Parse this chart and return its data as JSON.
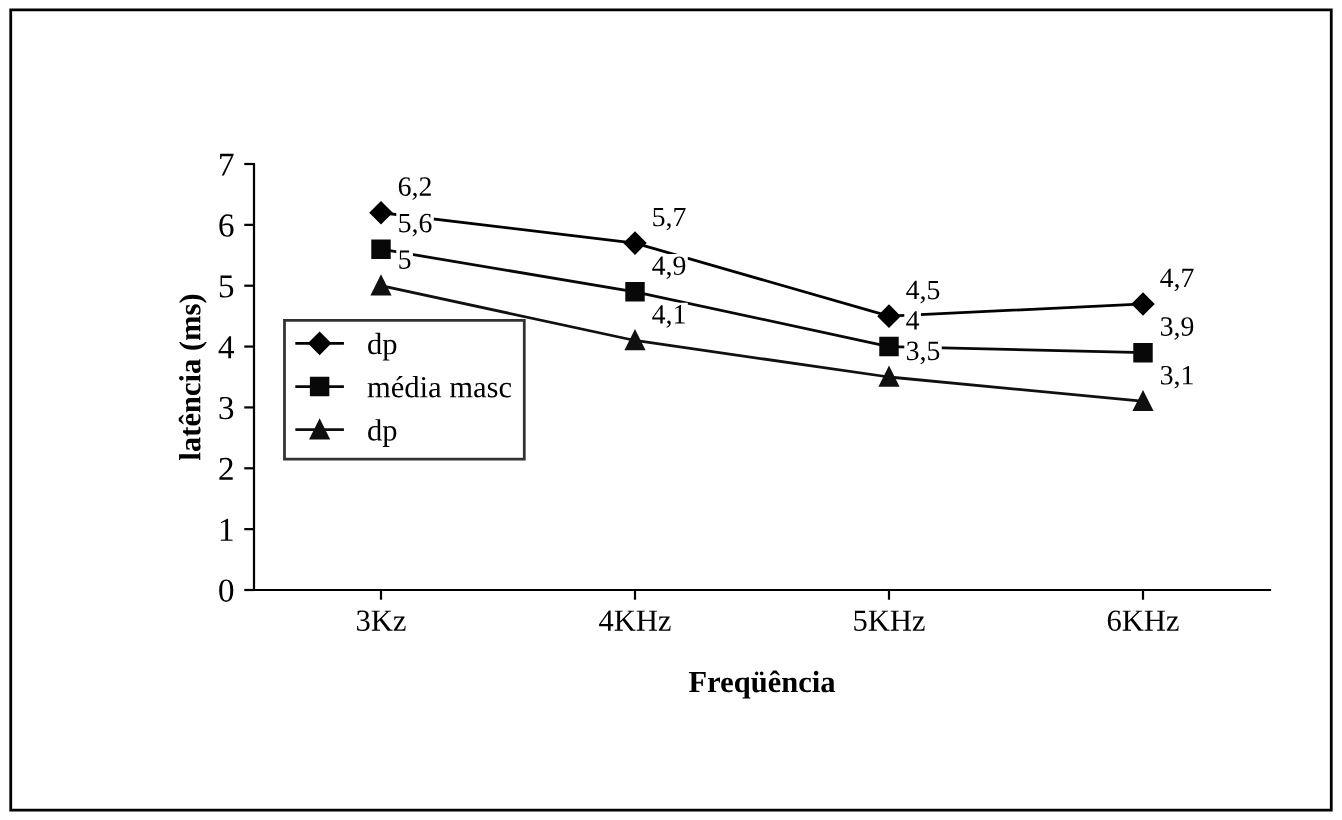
{
  "chart_data": {
    "type": "line",
    "xlabel": "Freqüência",
    "ylabel": "latência (ms)",
    "categories": [
      "3Kz",
      "4KHz",
      "5KHz",
      "6KHz"
    ],
    "series": [
      {
        "name": "dp",
        "color": "#000000",
        "marker": "diamond",
        "values": [
          6.2,
          5.7,
          4.5,
          4.7
        ],
        "value_labels": [
          "6,2",
          "5,7",
          "4,5",
          "4,7"
        ]
      },
      {
        "name": "média masc",
        "color": "#080808",
        "marker": "square",
        "values": [
          5.6,
          4.9,
          4,
          3.9
        ],
        "value_labels": [
          "5,6",
          "4,9",
          "4",
          "3,9"
        ]
      },
      {
        "name": "dp",
        "color": "#101010",
        "marker": "triangle",
        "values": [
          5,
          4.1,
          3.5,
          3.1
        ],
        "value_labels": [
          "5",
          "4,1",
          "3,5",
          "3,1"
        ]
      }
    ],
    "ylim": [
      0,
      7
    ],
    "yticks": [
      0,
      1,
      2,
      3,
      4,
      5,
      6,
      7
    ],
    "grid": false,
    "legend": "left",
    "line_style": "solid"
  }
}
